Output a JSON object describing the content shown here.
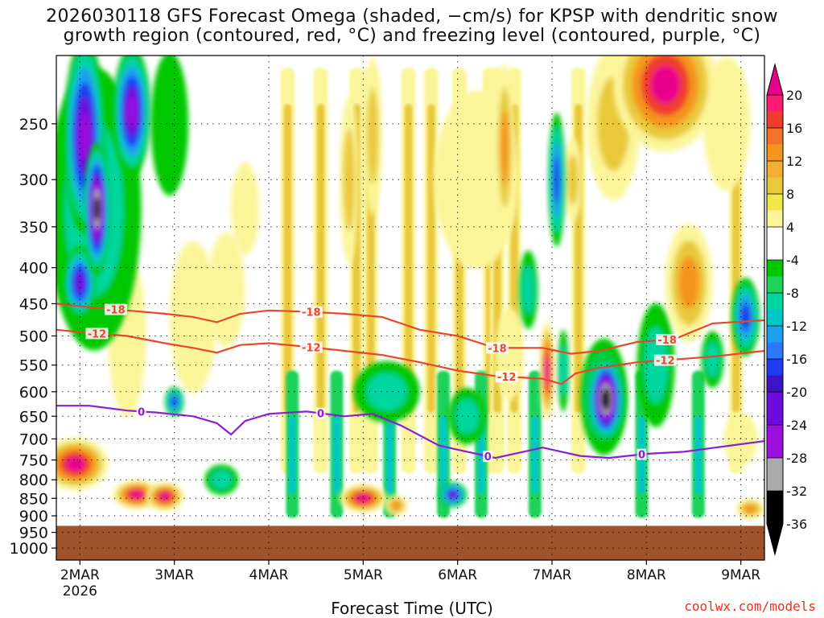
{
  "title_line1": "2026030118 GFS Forecast Omega (shaded, −cm/s) for KPSP with dendritic snow",
  "title_line2": "growth region (contoured, red, °C) and freezing level (contoured, purple, °C)",
  "xlabel": "Forecast Time (UTC)",
  "credit": "coolwx.com/models",
  "chart_data": {
    "type": "heatmap",
    "title": "2026030118 GFS Forecast Omega (shaded, −cm/s) for KPSP with dendritic snow growth region (contoured, red, °C) and freezing level (contoured, purple, °C)",
    "xlabel": "Forecast Time (UTC)",
    "ylabel": "Pressure (hPa)",
    "x_ticks": [
      "2MAR",
      "3MAR",
      "4MAR",
      "5MAR",
      "6MAR",
      "7MAR",
      "8MAR",
      "9MAR"
    ],
    "x_year_label": "2026",
    "x_range_days": [
      1.75,
      9.25
    ],
    "y_ticks": [
      250,
      300,
      350,
      400,
      450,
      500,
      550,
      600,
      650,
      700,
      750,
      800,
      850,
      900,
      950,
      1000
    ],
    "y_range_hpa": [
      200,
      1040
    ],
    "surface_pressure_hpa": 930,
    "colorbar": {
      "ticks": [
        20,
        16,
        12,
        8,
        4,
        -4,
        -8,
        -12,
        -16,
        -20,
        -24,
        -28,
        -32,
        -36
      ],
      "bins": [
        {
          "min": 20,
          "max": null,
          "color": "#e8008a"
        },
        {
          "min": 18,
          "max": 20,
          "color": "#ff1a74"
        },
        {
          "min": 16,
          "max": 18,
          "color": "#f03c2c"
        },
        {
          "min": 14,
          "max": 16,
          "color": "#f4732a"
        },
        {
          "min": 12,
          "max": 14,
          "color": "#f5951e"
        },
        {
          "min": 10,
          "max": 12,
          "color": "#f2ad32"
        },
        {
          "min": 8,
          "max": 10,
          "color": "#e9c93a"
        },
        {
          "min": 6,
          "max": 8,
          "color": "#f0e84a"
        },
        {
          "min": 4,
          "max": 6,
          "color": "#fbf59a"
        },
        {
          "min": -4,
          "max": 4,
          "color": "#ffffff"
        },
        {
          "min": -6,
          "max": -4,
          "color": "#00c800"
        },
        {
          "min": -8,
          "max": -6,
          "color": "#1ed25a"
        },
        {
          "min": -10,
          "max": -8,
          "color": "#00d6a0"
        },
        {
          "min": -12,
          "max": -10,
          "color": "#00c8c8"
        },
        {
          "min": -14,
          "max": -12,
          "color": "#1ea0f0"
        },
        {
          "min": -16,
          "max": -14,
          "color": "#2c78ff"
        },
        {
          "min": -18,
          "max": -16,
          "color": "#1e3cf0"
        },
        {
          "min": -20,
          "max": -18,
          "color": "#3c14c8"
        },
        {
          "min": -24,
          "max": -20,
          "color": "#6e0adc"
        },
        {
          "min": -28,
          "max": -24,
          "color": "#9b10dc"
        },
        {
          "min": -32,
          "max": -28,
          "color": "#aaaaaa"
        },
        {
          "min": -36,
          "max": -32,
          "color": "#000000"
        },
        {
          "min": null,
          "max": -36,
          "color": "#000000"
        }
      ]
    },
    "omega_blobs": [
      {
        "day": 2.05,
        "p": 260,
        "dt": 0.22,
        "dp": 240,
        "v": -28
      },
      {
        "day": 2.18,
        "p": 330,
        "dt": 0.14,
        "dp": 140,
        "v": -36
      },
      {
        "day": 2.0,
        "p": 420,
        "dt": 0.18,
        "dp": 100,
        "v": -24
      },
      {
        "day": 2.55,
        "p": 240,
        "dt": 0.2,
        "dp": 130,
        "v": -28
      },
      {
        "day": 2.15,
        "p": 330,
        "dt": 0.5,
        "dp": 350,
        "v": -10
      },
      {
        "day": 1.95,
        "p": 760,
        "dt": 0.35,
        "dp": 130,
        "v": 26
      },
      {
        "day": 2.6,
        "p": 840,
        "dt": 0.25,
        "dp": 80,
        "v": 22
      },
      {
        "day": 2.9,
        "p": 845,
        "dt": 0.2,
        "dp": 80,
        "v": 24
      },
      {
        "day": 2.5,
        "p": 500,
        "dt": 0.2,
        "dp": 260,
        "v": 8
      },
      {
        "day": 3.2,
        "p": 470,
        "dt": 0.25,
        "dp": 230,
        "v": 8
      },
      {
        "day": 3.55,
        "p": 430,
        "dt": 0.2,
        "dp": 160,
        "v": 7
      },
      {
        "day": 3.0,
        "p": 620,
        "dt": 0.1,
        "dp": 60,
        "v": -20
      },
      {
        "day": 3.5,
        "p": 800,
        "dt": 0.18,
        "dp": 80,
        "v": -9
      },
      {
        "day": 2.95,
        "p": 250,
        "dt": 0.2,
        "dp": 140,
        "v": -6
      },
      {
        "day": 3.75,
        "p": 330,
        "dt": 0.15,
        "dp": 100,
        "v": 6
      },
      {
        "day": 4.85,
        "p": 300,
        "dt": 0.1,
        "dp": 160,
        "v": 10
      },
      {
        "day": 5.1,
        "p": 260,
        "dt": 0.1,
        "dp": 150,
        "v": 10
      },
      {
        "day": 5.0,
        "p": 850,
        "dt": 0.25,
        "dp": 80,
        "v": 24
      },
      {
        "day": 5.35,
        "p": 870,
        "dt": 0.12,
        "dp": 60,
        "v": 14
      },
      {
        "day": 5.25,
        "p": 600,
        "dt": 0.35,
        "dp": 120,
        "v": -10
      },
      {
        "day": 5.95,
        "p": 840,
        "dt": 0.15,
        "dp": 70,
        "v": -24
      },
      {
        "day": 6.1,
        "p": 650,
        "dt": 0.2,
        "dp": 120,
        "v": -10
      },
      {
        "day": 6.2,
        "p": 300,
        "dt": 0.45,
        "dp": 170,
        "v": 8
      },
      {
        "day": 6.5,
        "p": 270,
        "dt": 0.1,
        "dp": 150,
        "v": 14
      },
      {
        "day": 6.55,
        "p": 530,
        "dt": 0.15,
        "dp": 160,
        "v": 7
      },
      {
        "day": 6.75,
        "p": 430,
        "dt": 0.1,
        "dp": 110,
        "v": -12
      },
      {
        "day": 6.95,
        "p": 560,
        "dt": 0.08,
        "dp": 180,
        "v": 22
      },
      {
        "day": 7.05,
        "p": 300,
        "dt": 0.09,
        "dp": 130,
        "v": -18
      },
      {
        "day": 7.12,
        "p": 560,
        "dt": 0.06,
        "dp": 150,
        "v": -12
      },
      {
        "day": 7.22,
        "p": 300,
        "dt": 0.1,
        "dp": 80,
        "v": 10
      },
      {
        "day": 7.55,
        "p": 610,
        "dt": 0.25,
        "dp": 230,
        "v": -14
      },
      {
        "day": 7.57,
        "p": 615,
        "dt": 0.2,
        "dp": 175,
        "v": -30
      },
      {
        "day": 7.57,
        "p": 615,
        "dt": 0.18,
        "dp": 165,
        "v": -38
      },
      {
        "day": 7.65,
        "p": 250,
        "dt": 0.28,
        "dp": 160,
        "v": 12
      },
      {
        "day": 8.2,
        "p": 220,
        "dt": 0.55,
        "dp": 180,
        "v": 22
      },
      {
        "day": 8.45,
        "p": 420,
        "dt": 0.25,
        "dp": 160,
        "v": 14
      },
      {
        "day": 8.1,
        "p": 550,
        "dt": 0.2,
        "dp": 220,
        "v": -12
      },
      {
        "day": 8.7,
        "p": 540,
        "dt": 0.12,
        "dp": 100,
        "v": -10
      },
      {
        "day": 9.05,
        "p": 470,
        "dt": 0.15,
        "dp": 120,
        "v": -20
      },
      {
        "day": 8.85,
        "p": 250,
        "dt": 0.25,
        "dp": 120,
        "v": 8
      },
      {
        "day": 9.0,
        "p": 700,
        "dt": 0.18,
        "dp": 120,
        "v": 8
      },
      {
        "day": 9.1,
        "p": 880,
        "dt": 0.15,
        "dp": 60,
        "v": 14
      }
    ],
    "stripes_positive": [
      4.2,
      4.55,
      4.93,
      5.08,
      5.48,
      5.72,
      6.02,
      6.34,
      6.42,
      6.6,
      7.28,
      8.95
    ],
    "stripes_negative": [
      4.25,
      4.72,
      5.28,
      5.85,
      6.25,
      6.82,
      7.95,
      8.55
    ],
    "contours": [
      {
        "level": -18,
        "color": "#e8472f",
        "label": "-18",
        "points": [
          [
            1.75,
            450
          ],
          [
            2.1,
            455
          ],
          [
            2.5,
            460
          ],
          [
            2.9,
            465
          ],
          [
            3.2,
            470
          ],
          [
            3.45,
            478
          ],
          [
            3.7,
            465
          ],
          [
            4.0,
            460
          ],
          [
            4.4,
            462
          ],
          [
            4.8,
            465
          ],
          [
            5.2,
            470
          ],
          [
            5.6,
            490
          ],
          [
            6.0,
            500
          ],
          [
            6.4,
            520
          ],
          [
            6.9,
            520
          ],
          [
            7.2,
            530
          ],
          [
            7.5,
            525
          ],
          [
            7.9,
            510
          ],
          [
            8.3,
            505
          ],
          [
            8.7,
            480
          ],
          [
            9.25,
            475
          ]
        ],
        "label_days": [
          2.38,
          4.45,
          6.42,
          8.22
        ]
      },
      {
        "level": -12,
        "color": "#e8472f",
        "label": "-12",
        "points": [
          [
            1.75,
            490
          ],
          [
            2.1,
            495
          ],
          [
            2.5,
            500
          ],
          [
            2.9,
            512
          ],
          [
            3.2,
            520
          ],
          [
            3.45,
            528
          ],
          [
            3.7,
            515
          ],
          [
            4.0,
            512
          ],
          [
            4.4,
            518
          ],
          [
            4.8,
            525
          ],
          [
            5.2,
            532
          ],
          [
            5.6,
            545
          ],
          [
            6.0,
            560
          ],
          [
            6.4,
            570
          ],
          [
            6.9,
            575
          ],
          [
            7.1,
            585
          ],
          [
            7.25,
            565
          ],
          [
            7.5,
            555
          ],
          [
            7.9,
            545
          ],
          [
            8.3,
            540
          ],
          [
            8.7,
            535
          ],
          [
            9.25,
            525
          ]
        ],
        "label_days": [
          2.18,
          4.45,
          6.52,
          8.2
        ]
      },
      {
        "level": 0,
        "color": "#8e1ed0",
        "label": "0",
        "points": [
          [
            1.75,
            628
          ],
          [
            2.1,
            628
          ],
          [
            2.5,
            638
          ],
          [
            2.8,
            642
          ],
          [
            3.2,
            650
          ],
          [
            3.45,
            665
          ],
          [
            3.6,
            690
          ],
          [
            3.75,
            660
          ],
          [
            4.0,
            645
          ],
          [
            4.4,
            640
          ],
          [
            4.8,
            650
          ],
          [
            5.1,
            645
          ],
          [
            5.4,
            670
          ],
          [
            5.8,
            715
          ],
          [
            6.0,
            725
          ],
          [
            6.4,
            745
          ],
          [
            6.9,
            720
          ],
          [
            7.3,
            740
          ],
          [
            7.6,
            745
          ],
          [
            8.0,
            735
          ],
          [
            8.4,
            730
          ],
          [
            8.8,
            718
          ],
          [
            9.25,
            705
          ]
        ],
        "label_days": [
          2.65,
          4.55,
          6.32,
          7.95
        ]
      }
    ]
  }
}
